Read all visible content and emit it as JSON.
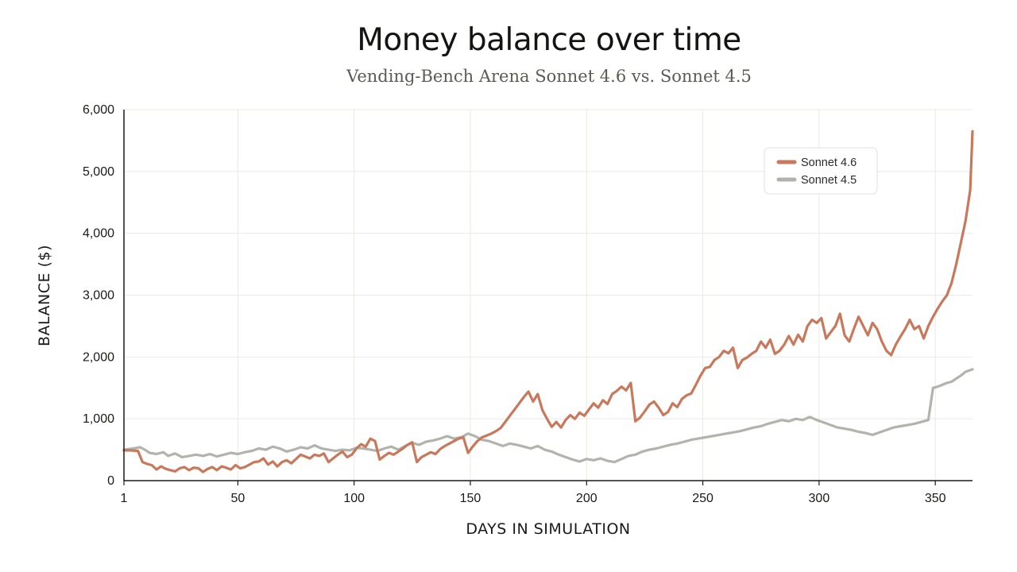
{
  "chart_data": {
    "type": "line",
    "title": "Money balance over time",
    "subtitle": "Vending-Bench Arena Sonnet 4.6 vs. Sonnet 4.5",
    "xlabel": "DAYS IN SIMULATION",
    "ylabel": "BALANCE ($)",
    "xlim": [
      1,
      366
    ],
    "ylim": [
      0,
      6000
    ],
    "x_ticks": [
      1,
      50,
      100,
      150,
      200,
      250,
      300,
      350
    ],
    "x_tick_labels": [
      "1",
      "50",
      "100",
      "150",
      "200",
      "250",
      "300",
      "350"
    ],
    "y_ticks": [
      0,
      1000,
      2000,
      3000,
      4000,
      5000,
      6000
    ],
    "y_tick_labels": [
      "0",
      "1,000",
      "2,000",
      "3,000",
      "4,000",
      "5,000",
      "6,000"
    ],
    "grid": true,
    "legend_position": "top-right",
    "series": [
      {
        "name": "Sonnet 4.6",
        "color": "#c9785b",
        "points": [
          [
            1,
            490
          ],
          [
            4,
            490
          ],
          [
            7,
            480
          ],
          [
            9,
            300
          ],
          [
            11,
            270
          ],
          [
            13,
            250
          ],
          [
            15,
            180
          ],
          [
            17,
            230
          ],
          [
            19,
            190
          ],
          [
            21,
            170
          ],
          [
            23,
            150
          ],
          [
            25,
            200
          ],
          [
            27,
            220
          ],
          [
            29,
            170
          ],
          [
            31,
            210
          ],
          [
            33,
            200
          ],
          [
            35,
            140
          ],
          [
            37,
            190
          ],
          [
            39,
            220
          ],
          [
            41,
            170
          ],
          [
            43,
            230
          ],
          [
            45,
            210
          ],
          [
            47,
            180
          ],
          [
            49,
            250
          ],
          [
            51,
            200
          ],
          [
            53,
            220
          ],
          [
            55,
            260
          ],
          [
            57,
            300
          ],
          [
            59,
            310
          ],
          [
            61,
            360
          ],
          [
            63,
            260
          ],
          [
            65,
            310
          ],
          [
            67,
            230
          ],
          [
            69,
            300
          ],
          [
            71,
            330
          ],
          [
            73,
            280
          ],
          [
            75,
            350
          ],
          [
            77,
            420
          ],
          [
            79,
            390
          ],
          [
            81,
            360
          ],
          [
            83,
            420
          ],
          [
            85,
            400
          ],
          [
            87,
            440
          ],
          [
            89,
            300
          ],
          [
            91,
            360
          ],
          [
            93,
            420
          ],
          [
            95,
            470
          ],
          [
            97,
            380
          ],
          [
            99,
            420
          ],
          [
            101,
            520
          ],
          [
            103,
            590
          ],
          [
            105,
            550
          ],
          [
            107,
            680
          ],
          [
            109,
            640
          ],
          [
            111,
            340
          ],
          [
            113,
            400
          ],
          [
            115,
            450
          ],
          [
            117,
            420
          ],
          [
            119,
            470
          ],
          [
            121,
            520
          ],
          [
            123,
            580
          ],
          [
            125,
            620
          ],
          [
            127,
            300
          ],
          [
            129,
            380
          ],
          [
            131,
            420
          ],
          [
            133,
            460
          ],
          [
            135,
            430
          ],
          [
            137,
            510
          ],
          [
            139,
            560
          ],
          [
            141,
            600
          ],
          [
            143,
            640
          ],
          [
            145,
            680
          ],
          [
            147,
            700
          ],
          [
            149,
            450
          ],
          [
            151,
            550
          ],
          [
            153,
            640
          ],
          [
            155,
            700
          ],
          [
            157,
            730
          ],
          [
            159,
            760
          ],
          [
            161,
            800
          ],
          [
            163,
            850
          ],
          [
            165,
            950
          ],
          [
            167,
            1050
          ],
          [
            169,
            1150
          ],
          [
            171,
            1250
          ],
          [
            173,
            1350
          ],
          [
            175,
            1440
          ],
          [
            177,
            1280
          ],
          [
            179,
            1400
          ],
          [
            181,
            1140
          ],
          [
            183,
            1000
          ],
          [
            185,
            870
          ],
          [
            187,
            950
          ],
          [
            189,
            860
          ],
          [
            191,
            980
          ],
          [
            193,
            1060
          ],
          [
            195,
            1000
          ],
          [
            197,
            1100
          ],
          [
            199,
            1050
          ],
          [
            201,
            1150
          ],
          [
            203,
            1250
          ],
          [
            205,
            1180
          ],
          [
            207,
            1300
          ],
          [
            209,
            1240
          ],
          [
            211,
            1400
          ],
          [
            213,
            1450
          ],
          [
            215,
            1520
          ],
          [
            217,
            1460
          ],
          [
            219,
            1580
          ],
          [
            221,
            960
          ],
          [
            223,
            1020
          ],
          [
            225,
            1120
          ],
          [
            227,
            1230
          ],
          [
            229,
            1280
          ],
          [
            231,
            1180
          ],
          [
            233,
            1060
          ],
          [
            235,
            1110
          ],
          [
            237,
            1250
          ],
          [
            239,
            1190
          ],
          [
            241,
            1320
          ],
          [
            243,
            1380
          ],
          [
            245,
            1410
          ],
          [
            247,
            1550
          ],
          [
            249,
            1700
          ],
          [
            251,
            1820
          ],
          [
            253,
            1840
          ],
          [
            255,
            1950
          ],
          [
            257,
            2000
          ],
          [
            259,
            2100
          ],
          [
            261,
            2060
          ],
          [
            263,
            2150
          ],
          [
            265,
            1820
          ],
          [
            267,
            1950
          ],
          [
            269,
            1990
          ],
          [
            271,
            2050
          ],
          [
            273,
            2100
          ],
          [
            275,
            2250
          ],
          [
            277,
            2150
          ],
          [
            279,
            2280
          ],
          [
            281,
            2050
          ],
          [
            283,
            2100
          ],
          [
            285,
            2200
          ],
          [
            287,
            2340
          ],
          [
            289,
            2200
          ],
          [
            291,
            2360
          ],
          [
            293,
            2250
          ],
          [
            295,
            2500
          ],
          [
            297,
            2600
          ],
          [
            299,
            2550
          ],
          [
            301,
            2630
          ],
          [
            303,
            2300
          ],
          [
            305,
            2400
          ],
          [
            307,
            2500
          ],
          [
            309,
            2700
          ],
          [
            311,
            2350
          ],
          [
            313,
            2250
          ],
          [
            315,
            2460
          ],
          [
            317,
            2650
          ],
          [
            319,
            2500
          ],
          [
            321,
            2350
          ],
          [
            323,
            2550
          ],
          [
            325,
            2450
          ],
          [
            327,
            2250
          ],
          [
            329,
            2100
          ],
          [
            331,
            2030
          ],
          [
            333,
            2200
          ],
          [
            335,
            2330
          ],
          [
            337,
            2450
          ],
          [
            339,
            2600
          ],
          [
            341,
            2450
          ],
          [
            343,
            2500
          ],
          [
            345,
            2300
          ],
          [
            347,
            2500
          ],
          [
            349,
            2650
          ],
          [
            351,
            2780
          ],
          [
            353,
            2900
          ],
          [
            355,
            3000
          ],
          [
            357,
            3200
          ],
          [
            359,
            3500
          ],
          [
            361,
            3850
          ],
          [
            363,
            4200
          ],
          [
            365,
            4700
          ],
          [
            366,
            5650
          ]
        ]
      },
      {
        "name": "Sonnet 4.5",
        "color": "#b3b3ae",
        "points": [
          [
            1,
            500
          ],
          [
            5,
            520
          ],
          [
            8,
            540
          ],
          [
            10,
            500
          ],
          [
            12,
            450
          ],
          [
            15,
            430
          ],
          [
            18,
            460
          ],
          [
            20,
            400
          ],
          [
            23,
            440
          ],
          [
            26,
            380
          ],
          [
            29,
            400
          ],
          [
            32,
            420
          ],
          [
            35,
            400
          ],
          [
            38,
            430
          ],
          [
            41,
            390
          ],
          [
            44,
            420
          ],
          [
            47,
            450
          ],
          [
            50,
            430
          ],
          [
            53,
            460
          ],
          [
            56,
            480
          ],
          [
            59,
            520
          ],
          [
            62,
            500
          ],
          [
            65,
            550
          ],
          [
            68,
            520
          ],
          [
            71,
            470
          ],
          [
            74,
            500
          ],
          [
            77,
            540
          ],
          [
            80,
            520
          ],
          [
            83,
            570
          ],
          [
            86,
            520
          ],
          [
            89,
            500
          ],
          [
            92,
            480
          ],
          [
            95,
            500
          ],
          [
            98,
            490
          ],
          [
            101,
            530
          ],
          [
            104,
            520
          ],
          [
            107,
            500
          ],
          [
            110,
            480
          ],
          [
            113,
            520
          ],
          [
            116,
            550
          ],
          [
            119,
            500
          ],
          [
            122,
            560
          ],
          [
            125,
            610
          ],
          [
            128,
            580
          ],
          [
            131,
            630
          ],
          [
            134,
            650
          ],
          [
            137,
            680
          ],
          [
            140,
            720
          ],
          [
            143,
            680
          ],
          [
            146,
            700
          ],
          [
            149,
            760
          ],
          [
            152,
            720
          ],
          [
            155,
            660
          ],
          [
            158,
            640
          ],
          [
            161,
            600
          ],
          [
            164,
            560
          ],
          [
            167,
            600
          ],
          [
            170,
            580
          ],
          [
            173,
            550
          ],
          [
            176,
            520
          ],
          [
            179,
            560
          ],
          [
            182,
            500
          ],
          [
            185,
            470
          ],
          [
            188,
            420
          ],
          [
            191,
            380
          ],
          [
            194,
            340
          ],
          [
            197,
            310
          ],
          [
            200,
            350
          ],
          [
            203,
            330
          ],
          [
            206,
            360
          ],
          [
            209,
            320
          ],
          [
            212,
            300
          ],
          [
            215,
            350
          ],
          [
            218,
            400
          ],
          [
            221,
            420
          ],
          [
            224,
            470
          ],
          [
            227,
            500
          ],
          [
            230,
            520
          ],
          [
            233,
            550
          ],
          [
            236,
            580
          ],
          [
            239,
            600
          ],
          [
            242,
            630
          ],
          [
            245,
            660
          ],
          [
            248,
            680
          ],
          [
            251,
            700
          ],
          [
            254,
            720
          ],
          [
            257,
            740
          ],
          [
            260,
            760
          ],
          [
            263,
            780
          ],
          [
            266,
            800
          ],
          [
            269,
            830
          ],
          [
            272,
            860
          ],
          [
            275,
            880
          ],
          [
            278,
            920
          ],
          [
            281,
            950
          ],
          [
            284,
            980
          ],
          [
            287,
            960
          ],
          [
            290,
            1000
          ],
          [
            293,
            980
          ],
          [
            296,
            1030
          ],
          [
            299,
            980
          ],
          [
            302,
            940
          ],
          [
            305,
            900
          ],
          [
            308,
            860
          ],
          [
            311,
            840
          ],
          [
            314,
            820
          ],
          [
            317,
            790
          ],
          [
            320,
            770
          ],
          [
            323,
            740
          ],
          [
            326,
            780
          ],
          [
            329,
            820
          ],
          [
            332,
            860
          ],
          [
            335,
            880
          ],
          [
            338,
            900
          ],
          [
            341,
            920
          ],
          [
            344,
            950
          ],
          [
            347,
            980
          ],
          [
            349,
            1500
          ],
          [
            351,
            1520
          ],
          [
            353,
            1550
          ],
          [
            355,
            1580
          ],
          [
            357,
            1600
          ],
          [
            359,
            1650
          ],
          [
            361,
            1700
          ],
          [
            363,
            1760
          ],
          [
            366,
            1800
          ]
        ]
      }
    ]
  }
}
